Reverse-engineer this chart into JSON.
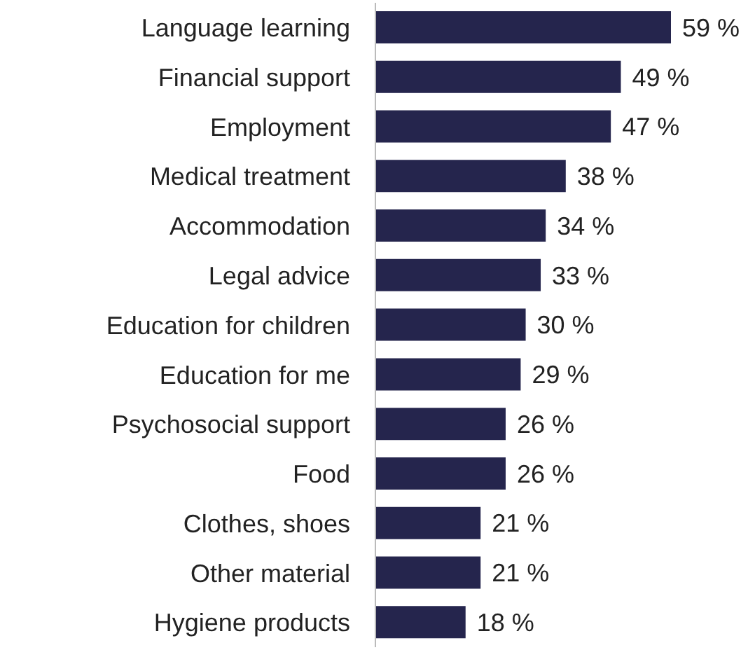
{
  "chart_data": {
    "type": "bar",
    "orientation": "horizontal",
    "tick_labels": "y",
    "categories": [
      "Language learning",
      "Financial support",
      "Employment",
      "Medical treatment",
      "Accommodation",
      "Legal advice",
      "Education for children",
      "Education for me",
      "Psychosocial support",
      "Food",
      "Clothes, shoes",
      "Other material",
      "Hygiene products"
    ],
    "values": [
      59,
      49,
      47,
      38,
      34,
      33,
      30,
      29,
      26,
      26,
      21,
      21,
      18
    ],
    "value_labels": [
      "59 %",
      "49 %",
      "47 %",
      "38 %",
      "34 %",
      "33 %",
      "30 %",
      "29 %",
      "26 %",
      "26 %",
      "21 %",
      "21 %",
      "18 %"
    ],
    "color": "#25254d"
  }
}
